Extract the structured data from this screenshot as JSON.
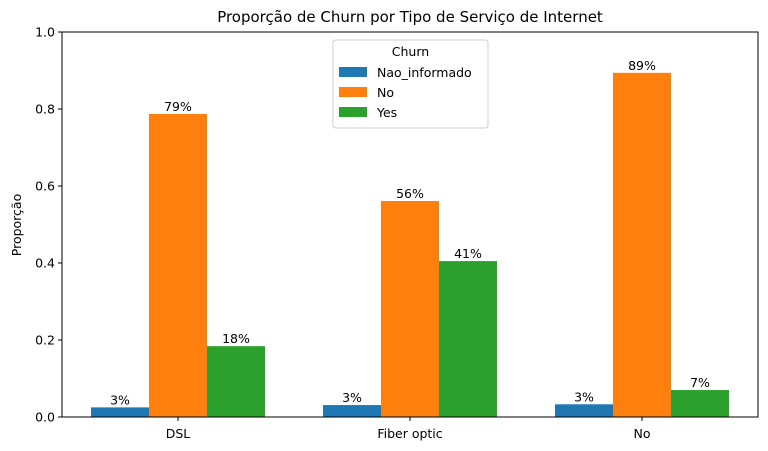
{
  "chart_data": {
    "type": "bar",
    "title": "Proporção de Churn por Tipo de Serviço de Internet",
    "xlabel": "",
    "ylabel": "Proporção",
    "ylim": [
      0,
      1.0
    ],
    "yticks": [
      "0.0",
      "0.2",
      "0.4",
      "0.6",
      "0.8",
      "1.0"
    ],
    "categories": [
      "DSL",
      "Fiber optic",
      "No"
    ],
    "series": [
      {
        "name": "Nao_informado",
        "color": "#1f77b4",
        "values": [
          0.025,
          0.031,
          0.033
        ],
        "labels": [
          "3%",
          "3%",
          "3%"
        ]
      },
      {
        "name": "No",
        "color": "#ff7f0e",
        "values": [
          0.787,
          0.561,
          0.894
        ],
        "labels": [
          "79%",
          "56%",
          "89%"
        ]
      },
      {
        "name": "Yes",
        "color": "#2ca02c",
        "values": [
          0.184,
          0.405,
          0.07
        ],
        "labels": [
          "18%",
          "41%",
          "7%"
        ]
      }
    ],
    "legend": {
      "title": "Churn",
      "position": "upper center"
    },
    "grid": false
  }
}
